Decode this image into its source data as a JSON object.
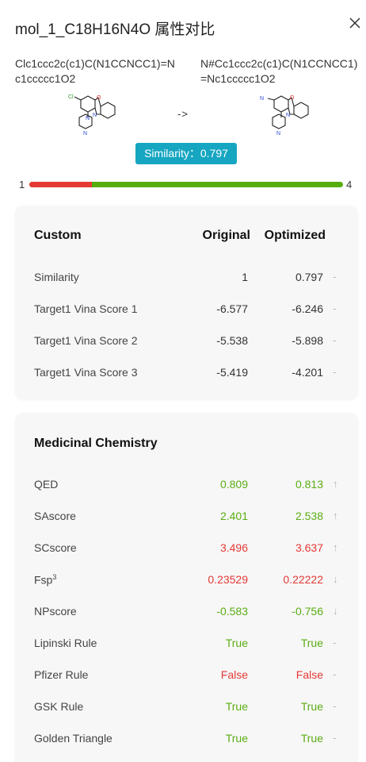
{
  "header": {
    "title": "mol_1_C18H16N4O 属性对比",
    "close_icon": "close-icon"
  },
  "compare": {
    "left_smiles": "Clc1ccc2c(c1)C(N1CCNCC1)=Nc1ccccc1O2",
    "right_smiles": "N#Cc1ccc2c(c1)C(N1CCNCC1)=Nc1ccccc1O2",
    "arrow": "->",
    "similarity_label": "Similarity：0.797"
  },
  "range": {
    "min_label": "1",
    "max_label": "4",
    "fill_fraction": 0.2,
    "fill_color": "#e53935",
    "track_color": "#56ad10"
  },
  "custom": {
    "heading": "Custom",
    "col_original": "Original",
    "col_optimized": "Optimized",
    "rows": [
      {
        "name": "Similarity",
        "original": "1",
        "optimized": "0.797",
        "trend": "-"
      },
      {
        "name": "Target1 Vina Score 1",
        "original": "-6.577",
        "optimized": "-6.246",
        "trend": "-"
      },
      {
        "name": "Target1 Vina Score 2",
        "original": "-5.538",
        "optimized": "-5.898",
        "trend": "-"
      },
      {
        "name": "Target1 Vina Score 3",
        "original": "-5.419",
        "optimized": "-4.201",
        "trend": "-"
      }
    ]
  },
  "medchem": {
    "heading": "Medicinal Chemistry",
    "rows": [
      {
        "name": "QED",
        "original": "0.809",
        "optimized": "0.813",
        "trend": "↑",
        "status": "green"
      },
      {
        "name": "SAscore",
        "original": "2.401",
        "optimized": "2.538",
        "trend": "↑",
        "status": "green"
      },
      {
        "name": "SCscore",
        "original": "3.496",
        "optimized": "3.637",
        "trend": "↑",
        "status": "red"
      },
      {
        "name": "Fsp",
        "sup": "3",
        "original": "0.23529",
        "optimized": "0.22222",
        "trend": "↓",
        "status": "red"
      },
      {
        "name": "NPscore",
        "original": "-0.583",
        "optimized": "-0.756",
        "trend": "↓",
        "status": "green"
      },
      {
        "name": "Lipinski Rule",
        "original": "True",
        "optimized": "True",
        "trend": "-",
        "status": "green"
      },
      {
        "name": "Pfizer Rule",
        "original": "False",
        "optimized": "False",
        "trend": "-",
        "status": "red"
      },
      {
        "name": "GSK Rule",
        "original": "True",
        "optimized": "True",
        "trend": "-",
        "status": "green"
      },
      {
        "name": "Golden Triangle",
        "original": "True",
        "optimized": "True",
        "trend": "-",
        "status": "green"
      }
    ]
  },
  "colors": {
    "accent": "#16a6c1",
    "good": "#5aad13",
    "bad": "#e53935"
  }
}
